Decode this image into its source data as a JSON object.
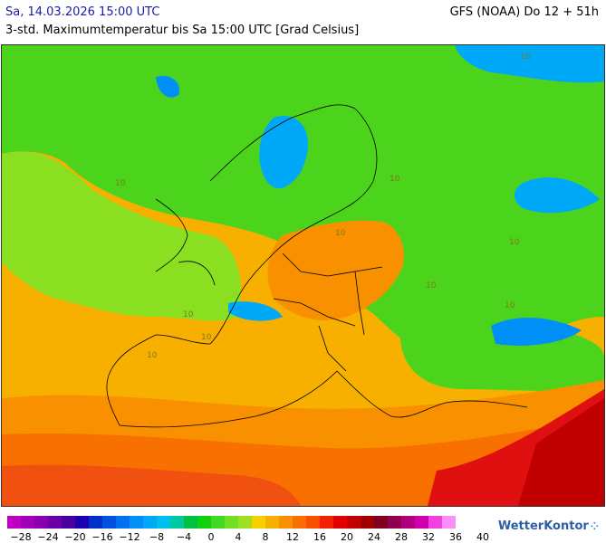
{
  "header": {
    "date_text": "Sa, 14.03.2026 15:00 UTC",
    "model_text": "GFS (NOAA) Do 12 + 51h",
    "subtitle": "3-std. Maximumtemperatur bis Sa 15:00 UTC [Grad Celsius]"
  },
  "map": {
    "region": "Europe",
    "contour_labels": [
      "10",
      "10",
      "10",
      "10",
      "10",
      "10",
      "10",
      "10",
      "10",
      "10"
    ]
  },
  "legend": {
    "colors": [
      "#c000c0",
      "#a000b8",
      "#8a00b0",
      "#6a00a8",
      "#4a00a0",
      "#1a00b0",
      "#0030c8",
      "#0050e0",
      "#0070f0",
      "#0090f8",
      "#00a8f8",
      "#00c0f0",
      "#00c8a0",
      "#00c040",
      "#10d010",
      "#40d820",
      "#70e020",
      "#a0e020",
      "#f8d000",
      "#f8b000",
      "#f89000",
      "#f87000",
      "#f85000",
      "#f02000",
      "#e00000",
      "#c00000",
      "#a00000",
      "#800020",
      "#900050",
      "#b00080",
      "#d000b0",
      "#f040e0",
      "#f890f8"
    ],
    "tick_labels": [
      "−28",
      "−24",
      "−20",
      "−16",
      "−12",
      "−8",
      "−4",
      "0",
      "4",
      "8",
      "12",
      "16",
      "20",
      "24",
      "28",
      "32",
      "36",
      "40"
    ]
  },
  "brand": {
    "name": "WetterKontor",
    "icon": "logo-dots-icon"
  }
}
